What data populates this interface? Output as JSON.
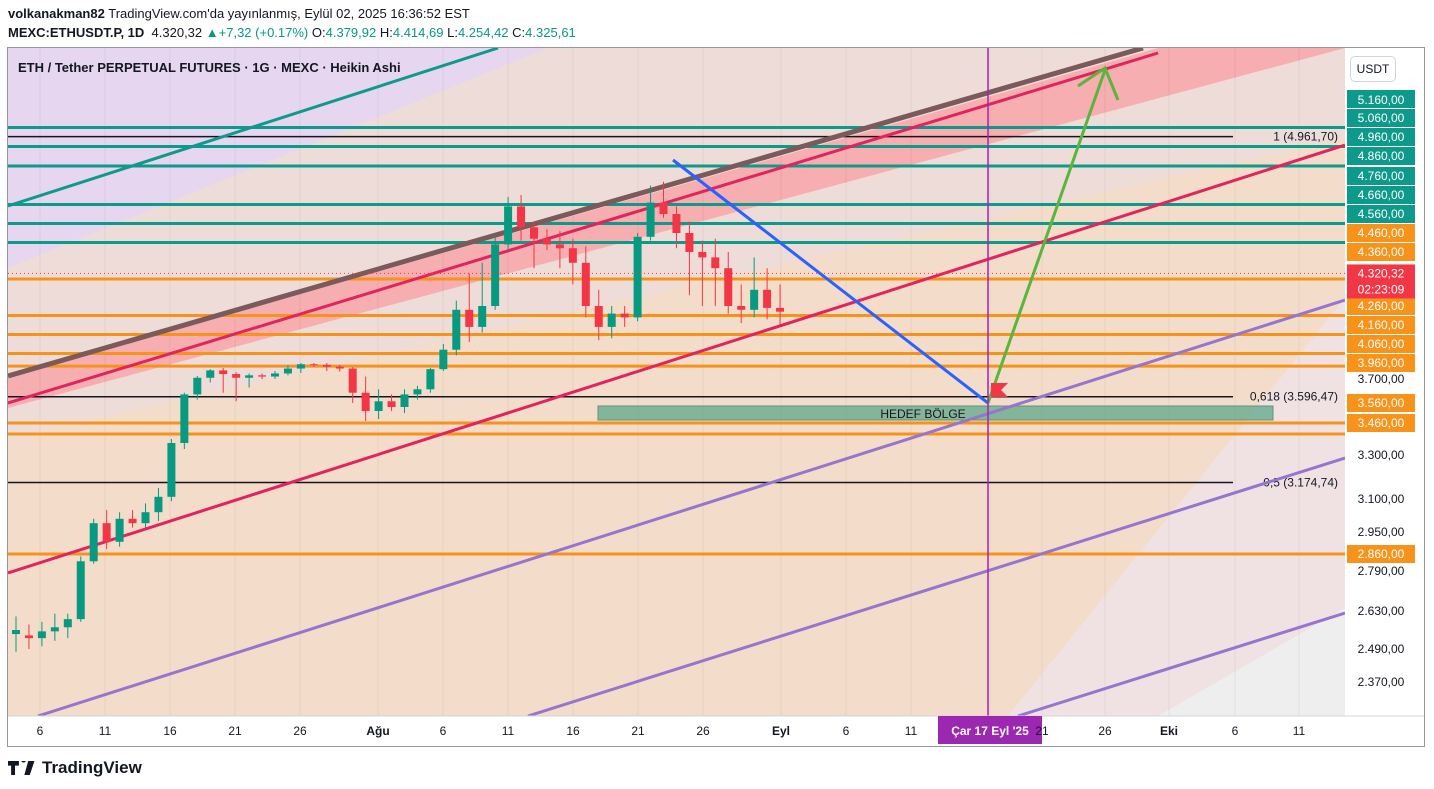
{
  "header": {
    "user": "volkanakman82",
    "published": "TradingView.com'da yayınlanmış, Eylül 02, 2025 16:36:52 EST",
    "symbol": "MEXC:ETHUSDT.P, 1D",
    "price": "4.320,32",
    "change": "+7,32 (+0.17%)",
    "o_label": "O:",
    "o": "4.379,92",
    "h_label": "H:",
    "h": "4.414,69",
    "l_label": "L:",
    "l": "4.254,42",
    "c_label": "C:",
    "c": "4.325,61"
  },
  "chart_title": "ETH / Tether PERPETUAL FUTURES · 1G · MEXC · Heikin Ashi",
  "currency_button": "USDT",
  "footer": {
    "brand": "TradingView"
  },
  "colors": {
    "up": "#089981",
    "down": "#f23645",
    "orange": "#f7931a",
    "teal": "#0e9a8a",
    "red_channel": "#e0245e",
    "purple_channel": "#9575cd",
    "blue": "#2962ff",
    "green_arrow": "#5bb53c",
    "cursor": "#9c27b0"
  },
  "chart_data": {
    "type": "candlestick",
    "style": "Heikin Ashi",
    "ylim": [
      2300,
      5200
    ],
    "x_ticks": [
      "6",
      "11",
      "16",
      "21",
      "26",
      "Ağu",
      "6",
      "11",
      "16",
      "21",
      "26",
      "Eyl",
      "6",
      "11",
      "Çar 17 Eyl '25",
      "21",
      "26",
      "Eki",
      "6",
      "11"
    ],
    "crosshair_date": "Çar 17 Eyl '25",
    "y_ticks": [
      {
        "v": 5060,
        "label": "5.060,00"
      },
      {
        "v": 4960,
        "label": "4.960,00"
      },
      {
        "v": 4860,
        "label": "4.860,00"
      },
      {
        "v": 4760,
        "label": "4.760,00"
      },
      {
        "v": 4660,
        "label": "4.660,00"
      },
      {
        "v": 4560,
        "label": "4.560,00"
      },
      {
        "v": 4460,
        "label": "4.460,00"
      },
      {
        "v": 4360,
        "label": "4.360,00"
      },
      {
        "v": 4260,
        "label": "4.260,00"
      },
      {
        "v": 4160,
        "label": "4.160,00"
      },
      {
        "v": 4060,
        "label": "4.060,00"
      },
      {
        "v": 3960,
        "label": "3.960,00"
      },
      {
        "v": 3700,
        "label": "3.700,00"
      },
      {
        "v": 3560,
        "label": "3.560,00"
      },
      {
        "v": 3460,
        "label": "3.460,00"
      },
      {
        "v": 3300,
        "label": "3.300,00"
      },
      {
        "v": 3100,
        "label": "3.100,00"
      },
      {
        "v": 2950,
        "label": "2.950,00"
      },
      {
        "v": 2860,
        "label": "2.860,00"
      },
      {
        "v": 2790,
        "label": "2.790,00"
      },
      {
        "v": 2630,
        "label": "2.630,00"
      },
      {
        "v": 2490,
        "label": "2.490,00"
      },
      {
        "v": 2370,
        "label": "2.370,00"
      }
    ],
    "highlight_ticks": [
      {
        "label": "5.160,00",
        "color": "#0e9a8a"
      },
      {
        "label": "5.060,00",
        "color": "#0e9a8a"
      },
      {
        "label": "4.960,00",
        "color": "#0e9a8a"
      },
      {
        "label": "4.860,00",
        "color": "#0e9a8a"
      },
      {
        "label": "4.760,00",
        "color": "#0e9a8a"
      },
      {
        "label": "4.660,00",
        "color": "#0e9a8a"
      },
      {
        "label": "4.560,00",
        "color": "#0e9a8a"
      },
      {
        "label": "4.460,00",
        "color": "#f7931a"
      },
      {
        "label": "4.360,00",
        "color": "#f7931a"
      },
      {
        "label": "4.260,00",
        "color": "#f7931a"
      },
      {
        "label": "4.160,00",
        "color": "#f7931a"
      },
      {
        "label": "4.060,00",
        "color": "#f7931a"
      },
      {
        "label": "3.960,00",
        "color": "#f7931a"
      },
      {
        "label": "3.560,00",
        "color": "#f7931a"
      },
      {
        "label": "3.460,00",
        "color": "#f7931a"
      },
      {
        "label": "2.860,00",
        "color": "#f7931a"
      }
    ],
    "current_price": {
      "label": "4.320,32",
      "countdown": "02:23:09"
    },
    "fib_levels": [
      {
        "label": "1 (4.961,70)",
        "value": 4961.7
      },
      {
        "label": "0,618 (3.596,47)",
        "value": 3596.47
      },
      {
        "label": "0,5 (3.174,74)",
        "value": 3174.74
      }
    ],
    "horizontal_lines_teal": [
      5010,
      4910,
      4810,
      4610,
      4510,
      4410
    ],
    "horizontal_lines_orange": [
      4310,
      4210,
      4110,
      4010,
      3910,
      3460,
      3405,
      2860
    ],
    "zone": {
      "label": "HEDEF BÖLGE",
      "low": 3460,
      "high": 3560
    },
    "candles": [
      {
        "o": 2545,
        "h": 2610,
        "l": 2480,
        "c": 2560
      },
      {
        "o": 2540,
        "h": 2580,
        "l": 2490,
        "c": 2530
      },
      {
        "o": 2530,
        "h": 2590,
        "l": 2500,
        "c": 2555
      },
      {
        "o": 2555,
        "h": 2620,
        "l": 2520,
        "c": 2570
      },
      {
        "o": 2570,
        "h": 2620,
        "l": 2530,
        "c": 2600
      },
      {
        "o": 2600,
        "h": 2850,
        "l": 2590,
        "c": 2830
      },
      {
        "o": 2830,
        "h": 3010,
        "l": 2820,
        "c": 2990
      },
      {
        "o": 2990,
        "h": 3050,
        "l": 2880,
        "c": 2910
      },
      {
        "o": 2910,
        "h": 3040,
        "l": 2890,
        "c": 3010
      },
      {
        "o": 3010,
        "h": 3050,
        "l": 2970,
        "c": 2990
      },
      {
        "o": 2990,
        "h": 3080,
        "l": 2970,
        "c": 3040
      },
      {
        "o": 3040,
        "h": 3150,
        "l": 3000,
        "c": 3110
      },
      {
        "o": 3110,
        "h": 3380,
        "l": 3090,
        "c": 3360
      },
      {
        "o": 3360,
        "h": 3620,
        "l": 3330,
        "c": 3610
      },
      {
        "o": 3610,
        "h": 3750,
        "l": 3580,
        "c": 3720
      },
      {
        "o": 3720,
        "h": 3860,
        "l": 3680,
        "c": 3840
      },
      {
        "o": 3840,
        "h": 3880,
        "l": 3620,
        "c": 3780
      },
      {
        "o": 3780,
        "h": 3810,
        "l": 3570,
        "c": 3720
      },
      {
        "o": 3720,
        "h": 3790,
        "l": 3650,
        "c": 3760
      },
      {
        "o": 3760,
        "h": 3790,
        "l": 3700,
        "c": 3740
      },
      {
        "o": 3740,
        "h": 3830,
        "l": 3700,
        "c": 3790
      },
      {
        "o": 3790,
        "h": 3920,
        "l": 3760,
        "c": 3870
      },
      {
        "o": 3870,
        "h": 3960,
        "l": 3800,
        "c": 3940
      },
      {
        "o": 3940,
        "h": 3960,
        "l": 3900,
        "c": 3930
      },
      {
        "o": 3930,
        "h": 3960,
        "l": 3830,
        "c": 3900
      },
      {
        "o": 3900,
        "h": 3930,
        "l": 3820,
        "c": 3870
      },
      {
        "o": 3870,
        "h": 3890,
        "l": 3560,
        "c": 3620
      },
      {
        "o": 3620,
        "h": 3740,
        "l": 3470,
        "c": 3520
      },
      {
        "o": 3520,
        "h": 3640,
        "l": 3480,
        "c": 3570
      },
      {
        "o": 3570,
        "h": 3610,
        "l": 3520,
        "c": 3540
      },
      {
        "o": 3540,
        "h": 3640,
        "l": 3510,
        "c": 3610
      },
      {
        "o": 3610,
        "h": 3660,
        "l": 3580,
        "c": 3640
      },
      {
        "o": 3640,
        "h": 3880,
        "l": 3620,
        "c": 3860
      },
      {
        "o": 3860,
        "h": 4060,
        "l": 3830,
        "c": 4030
      },
      {
        "o": 4030,
        "h": 4270,
        "l": 4000,
        "c": 4240
      },
      {
        "o": 4240,
        "h": 4320,
        "l": 4070,
        "c": 4150
      },
      {
        "o": 4150,
        "h": 4340,
        "l": 4120,
        "c": 4260
      },
      {
        "o": 4260,
        "h": 4440,
        "l": 4240,
        "c": 4400
      },
      {
        "o": 4400,
        "h": 4650,
        "l": 4370,
        "c": 4600
      },
      {
        "o": 4600,
        "h": 4660,
        "l": 4420,
        "c": 4490
      },
      {
        "o": 4490,
        "h": 4520,
        "l": 4330,
        "c": 4430
      },
      {
        "o": 4430,
        "h": 4480,
        "l": 4370,
        "c": 4400
      },
      {
        "o": 4400,
        "h": 4470,
        "l": 4330,
        "c": 4380
      },
      {
        "o": 4380,
        "h": 4430,
        "l": 4300,
        "c": 4340
      },
      {
        "o": 4340,
        "h": 4390,
        "l": 4200,
        "c": 4260
      },
      {
        "o": 4260,
        "h": 4290,
        "l": 4080,
        "c": 4150
      },
      {
        "o": 4150,
        "h": 4260,
        "l": 4090,
        "c": 4220
      },
      {
        "o": 4220,
        "h": 4260,
        "l": 4150,
        "c": 4200
      },
      {
        "o": 4200,
        "h": 4460,
        "l": 4180,
        "c": 4440
      },
      {
        "o": 4440,
        "h": 4710,
        "l": 4420,
        "c": 4620
      },
      {
        "o": 4620,
        "h": 4730,
        "l": 4540,
        "c": 4560
      },
      {
        "o": 4560,
        "h": 4600,
        "l": 4380,
        "c": 4460
      },
      {
        "o": 4460,
        "h": 4520,
        "l": 4280,
        "c": 4360
      },
      {
        "o": 4360,
        "h": 4420,
        "l": 4260,
        "c": 4350
      },
      {
        "o": 4350,
        "h": 4430,
        "l": 4260,
        "c": 4330
      },
      {
        "o": 4330,
        "h": 4360,
        "l": 4220,
        "c": 4260
      },
      {
        "o": 4260,
        "h": 4300,
        "l": 4170,
        "c": 4240
      },
      {
        "o": 4240,
        "h": 4350,
        "l": 4200,
        "c": 4290
      },
      {
        "o": 4290,
        "h": 4330,
        "l": 4190,
        "c": 4250
      },
      {
        "o": 4250,
        "h": 4300,
        "l": 4160,
        "c": 4230
      }
    ]
  }
}
